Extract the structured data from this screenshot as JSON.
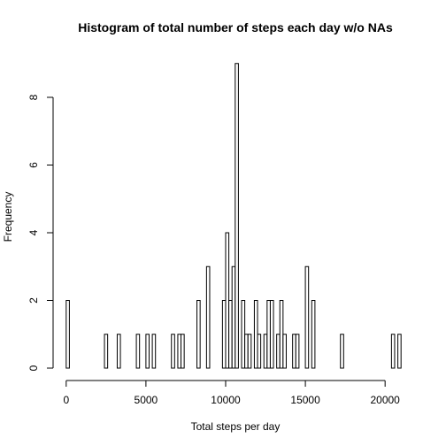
{
  "chart_data": {
    "type": "bar",
    "title": "Histogram of total number of steps each day w/o NAs",
    "xlabel": "Total steps per day",
    "ylabel": "Frequency",
    "bin_width": 200,
    "xlim": [
      0,
      21200
    ],
    "ylim": [
      0,
      9
    ],
    "x_ticks": [
      0,
      5000,
      10000,
      15000,
      20000
    ],
    "y_ticks": [
      0,
      2,
      4,
      6,
      8
    ],
    "bins": [
      {
        "x": 0,
        "count": 2
      },
      {
        "x": 2400,
        "count": 1
      },
      {
        "x": 3200,
        "count": 1
      },
      {
        "x": 4400,
        "count": 1
      },
      {
        "x": 5000,
        "count": 1
      },
      {
        "x": 5400,
        "count": 1
      },
      {
        "x": 6600,
        "count": 1
      },
      {
        "x": 7000,
        "count": 1
      },
      {
        "x": 7200,
        "count": 1
      },
      {
        "x": 8200,
        "count": 2
      },
      {
        "x": 8800,
        "count": 3
      },
      {
        "x": 9800,
        "count": 2
      },
      {
        "x": 10000,
        "count": 4
      },
      {
        "x": 10200,
        "count": 2
      },
      {
        "x": 10400,
        "count": 3
      },
      {
        "x": 10600,
        "count": 9
      },
      {
        "x": 11000,
        "count": 2
      },
      {
        "x": 11200,
        "count": 1
      },
      {
        "x": 11400,
        "count": 1
      },
      {
        "x": 11800,
        "count": 2
      },
      {
        "x": 12000,
        "count": 1
      },
      {
        "x": 12400,
        "count": 1
      },
      {
        "x": 12600,
        "count": 2
      },
      {
        "x": 12800,
        "count": 2
      },
      {
        "x": 13200,
        "count": 1
      },
      {
        "x": 13400,
        "count": 2
      },
      {
        "x": 13600,
        "count": 1
      },
      {
        "x": 14200,
        "count": 1
      },
      {
        "x": 14400,
        "count": 1
      },
      {
        "x": 15000,
        "count": 3
      },
      {
        "x": 15400,
        "count": 2
      },
      {
        "x": 17200,
        "count": 1
      },
      {
        "x": 20400,
        "count": 1
      },
      {
        "x": 20800,
        "count": 1
      }
    ]
  }
}
